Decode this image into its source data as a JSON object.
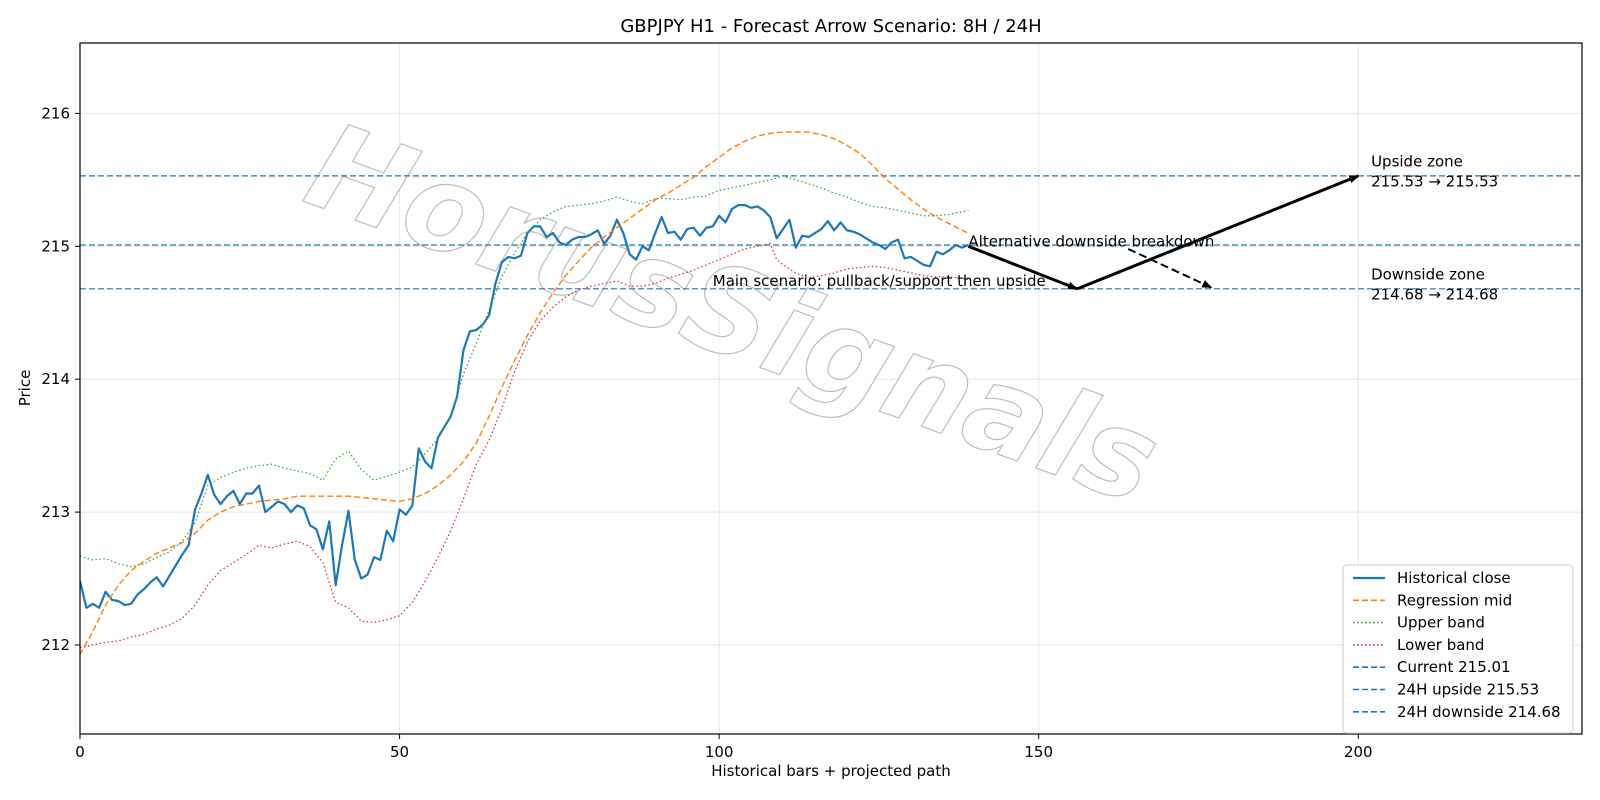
{
  "chart_data": {
    "type": "line",
    "title": "GBPJPY H1 - Forecast Arrow Scenario: 8H / 24H",
    "xlabel": "Historical bars + projected path",
    "ylabel": "Price",
    "xlim": [
      0,
      235
    ],
    "ylim": [
      211.33,
      216.53
    ],
    "xticks": [
      0,
      50,
      100,
      150,
      200
    ],
    "yticks": [
      212,
      213,
      214,
      215,
      216
    ],
    "grid": true,
    "legend_position": "bottom-right",
    "watermark": "HorusSignals",
    "colors": {
      "close": "#1f77b4",
      "regression": "#ff7f0e",
      "upper": "#2ca02c",
      "lower": "#d62728",
      "hline": "#1f77b4",
      "grid": "#e6e6e6",
      "arrow": "#000000"
    },
    "series": [
      {
        "name": "Historical close",
        "style": "solid",
        "x": [
          0,
          1,
          2,
          3,
          4,
          5,
          6,
          7,
          8,
          9,
          10,
          11,
          12,
          13,
          14,
          15,
          16,
          17,
          18,
          19,
          20,
          21,
          22,
          23,
          24,
          25,
          26,
          27,
          28,
          29,
          30,
          31,
          32,
          33,
          34,
          35,
          36,
          37,
          38,
          39,
          40,
          41,
          42,
          43,
          44,
          45,
          46,
          47,
          48,
          49,
          50,
          51,
          52,
          53,
          54,
          55,
          56,
          57,
          58,
          59,
          60,
          61,
          62,
          63,
          64,
          65,
          66,
          67,
          68,
          69,
          70,
          71,
          72,
          73,
          74,
          75,
          76,
          77,
          78,
          79,
          80,
          81,
          82,
          83,
          84,
          85,
          86,
          87,
          88,
          89,
          90,
          91,
          92,
          93,
          94,
          95,
          96,
          97,
          98,
          99,
          100,
          101,
          102,
          103,
          104,
          105,
          106,
          107,
          108,
          109,
          110,
          111,
          112,
          113,
          114,
          115,
          116,
          117,
          118,
          119,
          120,
          121,
          122,
          123,
          124,
          125,
          126,
          127,
          128,
          129,
          130,
          131,
          132,
          133,
          134,
          135,
          136,
          137,
          138,
          139
        ],
        "y": [
          212.48,
          212.28,
          212.31,
          212.28,
          212.4,
          212.34,
          212.33,
          212.3,
          212.31,
          212.38,
          212.42,
          212.47,
          212.51,
          212.44,
          212.52,
          212.6,
          212.68,
          212.75,
          213.02,
          213.14,
          213.28,
          213.13,
          213.06,
          213.12,
          213.16,
          213.06,
          213.14,
          213.14,
          213.2,
          213.0,
          213.04,
          213.08,
          213.06,
          213.0,
          213.05,
          213.03,
          212.9,
          212.87,
          212.72,
          212.93,
          212.45,
          212.75,
          213.01,
          212.64,
          212.5,
          212.53,
          212.66,
          212.64,
          212.86,
          212.78,
          213.02,
          212.98,
          213.05,
          213.48,
          213.38,
          213.33,
          213.56,
          213.64,
          213.72,
          213.87,
          214.22,
          214.36,
          214.37,
          214.41,
          214.48,
          214.72,
          214.88,
          214.92,
          214.91,
          214.93,
          215.1,
          215.15,
          215.15,
          215.07,
          215.1,
          215.03,
          215.01,
          215.05,
          215.07,
          215.07,
          215.09,
          215.12,
          215.02,
          215.08,
          215.2,
          215.1,
          214.94,
          214.9,
          215.0,
          214.97,
          215.1,
          215.22,
          215.1,
          215.11,
          215.05,
          215.13,
          215.14,
          215.08,
          215.14,
          215.15,
          215.23,
          215.18,
          215.28,
          215.31,
          215.31,
          215.29,
          215.3,
          215.27,
          215.22,
          215.06,
          215.13,
          215.2,
          214.99,
          215.08,
          215.07,
          215.1,
          215.13,
          215.19,
          215.12,
          215.18,
          215.12,
          215.11,
          215.09,
          215.06,
          215.03,
          215.01,
          214.98,
          215.03,
          215.05,
          214.91,
          214.92,
          214.89,
          214.86,
          214.85,
          214.96,
          214.94,
          214.97,
          215.01,
          214.99,
          215.01
        ]
      },
      {
        "name": "Regression mid",
        "style": "dashed",
        "x": [
          0,
          2,
          4,
          6,
          8,
          10,
          12,
          14,
          16,
          18,
          20,
          22,
          24,
          26,
          28,
          30,
          32,
          34,
          36,
          38,
          40,
          42,
          44,
          46,
          48,
          50,
          52,
          54,
          56,
          58,
          60,
          62,
          64,
          66,
          68,
          70,
          72,
          74,
          76,
          78,
          80,
          82,
          84,
          86,
          88,
          90,
          92,
          94,
          96,
          98,
          100,
          102,
          104,
          106,
          108,
          110,
          112,
          114,
          116,
          118,
          120,
          122,
          124,
          126,
          128,
          130,
          132,
          134,
          136,
          138,
          139
        ],
        "y": [
          211.93,
          212.1,
          212.3,
          212.45,
          212.56,
          212.63,
          212.69,
          212.73,
          212.77,
          212.84,
          212.94,
          213.0,
          213.04,
          213.06,
          213.08,
          213.09,
          213.1,
          213.12,
          213.12,
          213.12,
          213.12,
          213.12,
          213.11,
          213.1,
          213.09,
          213.08,
          213.1,
          213.14,
          213.2,
          213.28,
          213.38,
          213.52,
          213.72,
          213.94,
          214.14,
          214.33,
          214.5,
          214.65,
          214.78,
          214.89,
          214.99,
          215.07,
          215.14,
          215.21,
          215.28,
          215.35,
          215.4,
          215.46,
          215.52,
          215.6,
          215.67,
          215.74,
          215.79,
          215.83,
          215.85,
          215.86,
          215.86,
          215.86,
          215.84,
          215.81,
          215.76,
          215.7,
          215.61,
          215.51,
          215.43,
          215.35,
          215.28,
          215.22,
          215.17,
          215.12,
          215.1
        ]
      },
      {
        "name": "Upper band",
        "style": "dotted",
        "x": [
          0,
          2,
          4,
          6,
          8,
          10,
          12,
          14,
          16,
          18,
          20,
          22,
          24,
          26,
          28,
          30,
          32,
          34,
          36,
          38,
          40,
          42,
          44,
          46,
          48,
          50,
          52,
          54,
          56,
          58,
          60,
          62,
          64,
          66,
          68,
          70,
          72,
          74,
          76,
          78,
          80,
          82,
          84,
          86,
          88,
          90,
          92,
          94,
          96,
          98,
          100,
          102,
          104,
          106,
          108,
          110,
          112,
          114,
          116,
          118,
          120,
          122,
          124,
          126,
          128,
          130,
          132,
          134,
          136,
          138,
          139
        ],
        "y": [
          212.67,
          212.64,
          212.65,
          212.61,
          212.59,
          212.61,
          212.66,
          212.7,
          212.78,
          212.92,
          213.2,
          213.26,
          213.3,
          213.33,
          213.35,
          213.36,
          213.33,
          213.31,
          213.29,
          213.24,
          213.4,
          213.46,
          213.32,
          213.24,
          213.27,
          213.3,
          213.34,
          213.44,
          213.55,
          213.72,
          214.04,
          214.27,
          214.52,
          214.77,
          214.95,
          215.1,
          215.2,
          215.26,
          215.3,
          215.31,
          215.32,
          215.34,
          215.37,
          215.34,
          215.32,
          215.36,
          215.36,
          215.35,
          215.37,
          215.38,
          215.42,
          215.44,
          215.46,
          215.48,
          215.5,
          215.53,
          215.5,
          215.47,
          215.44,
          215.4,
          215.37,
          215.33,
          215.3,
          215.29,
          215.27,
          215.25,
          215.23,
          215.23,
          215.24,
          215.26,
          215.27
        ]
      },
      {
        "name": "Lower band",
        "style": "dotted",
        "x": [
          0,
          2,
          4,
          6,
          8,
          10,
          12,
          14,
          16,
          18,
          20,
          22,
          24,
          26,
          28,
          30,
          32,
          34,
          36,
          38,
          40,
          42,
          44,
          46,
          48,
          50,
          52,
          54,
          56,
          58,
          60,
          62,
          64,
          66,
          68,
          70,
          72,
          74,
          76,
          78,
          80,
          82,
          84,
          86,
          88,
          90,
          92,
          94,
          96,
          98,
          100,
          102,
          104,
          106,
          108,
          109,
          110,
          112,
          114,
          116,
          118,
          120,
          122,
          124,
          126,
          128,
          130,
          132,
          134,
          136,
          138,
          139
        ],
        "y": [
          211.98,
          212.0,
          212.02,
          212.03,
          212.06,
          212.08,
          212.12,
          212.15,
          212.2,
          212.3,
          212.45,
          212.56,
          212.62,
          212.68,
          212.75,
          212.73,
          212.76,
          212.78,
          212.74,
          212.62,
          212.32,
          212.28,
          212.18,
          212.17,
          212.19,
          212.22,
          212.32,
          212.48,
          212.66,
          212.86,
          213.1,
          213.36,
          213.54,
          213.78,
          214.06,
          214.28,
          214.44,
          214.54,
          214.62,
          214.67,
          214.7,
          214.72,
          214.74,
          214.7,
          214.7,
          214.72,
          214.76,
          214.79,
          214.82,
          214.86,
          214.9,
          214.94,
          214.98,
          215.0,
          215.02,
          214.9,
          214.86,
          214.8,
          214.76,
          214.78,
          214.8,
          214.83,
          214.84,
          214.85,
          214.84,
          214.82,
          214.8,
          214.78,
          214.77,
          214.77,
          214.76,
          214.75
        ]
      }
    ],
    "hlines": [
      {
        "name": "Current 215.01",
        "value": 215.01
      },
      {
        "name": "24H upside 215.53",
        "value": 215.53
      },
      {
        "name": "24H downside 214.68",
        "value": 214.68
      }
    ],
    "arrows": [
      {
        "from": [
          139,
          215.0
        ],
        "to": [
          156,
          214.68
        ],
        "style": "solid"
      },
      {
        "from": [
          156,
          214.68
        ],
        "to": [
          200,
          215.53
        ],
        "style": "solid"
      },
      {
        "from": [
          164,
          214.98
        ],
        "to": [
          177,
          214.69
        ],
        "style": "dashed"
      }
    ],
    "annotations": [
      {
        "text": "Alternative downside breakdown",
        "x": 139,
        "y": 215.0
      },
      {
        "text": "Main scenario: pullback/support then upside",
        "x": 99,
        "y": 214.7
      },
      {
        "text": "Upside zone",
        "x": 202,
        "y": 215.6
      },
      {
        "text": "215.53 → 215.53",
        "x": 202,
        "y": 215.45
      },
      {
        "text": "Downside zone",
        "x": 202,
        "y": 214.75
      },
      {
        "text": "214.68 → 214.68",
        "x": 202,
        "y": 214.6
      }
    ]
  }
}
